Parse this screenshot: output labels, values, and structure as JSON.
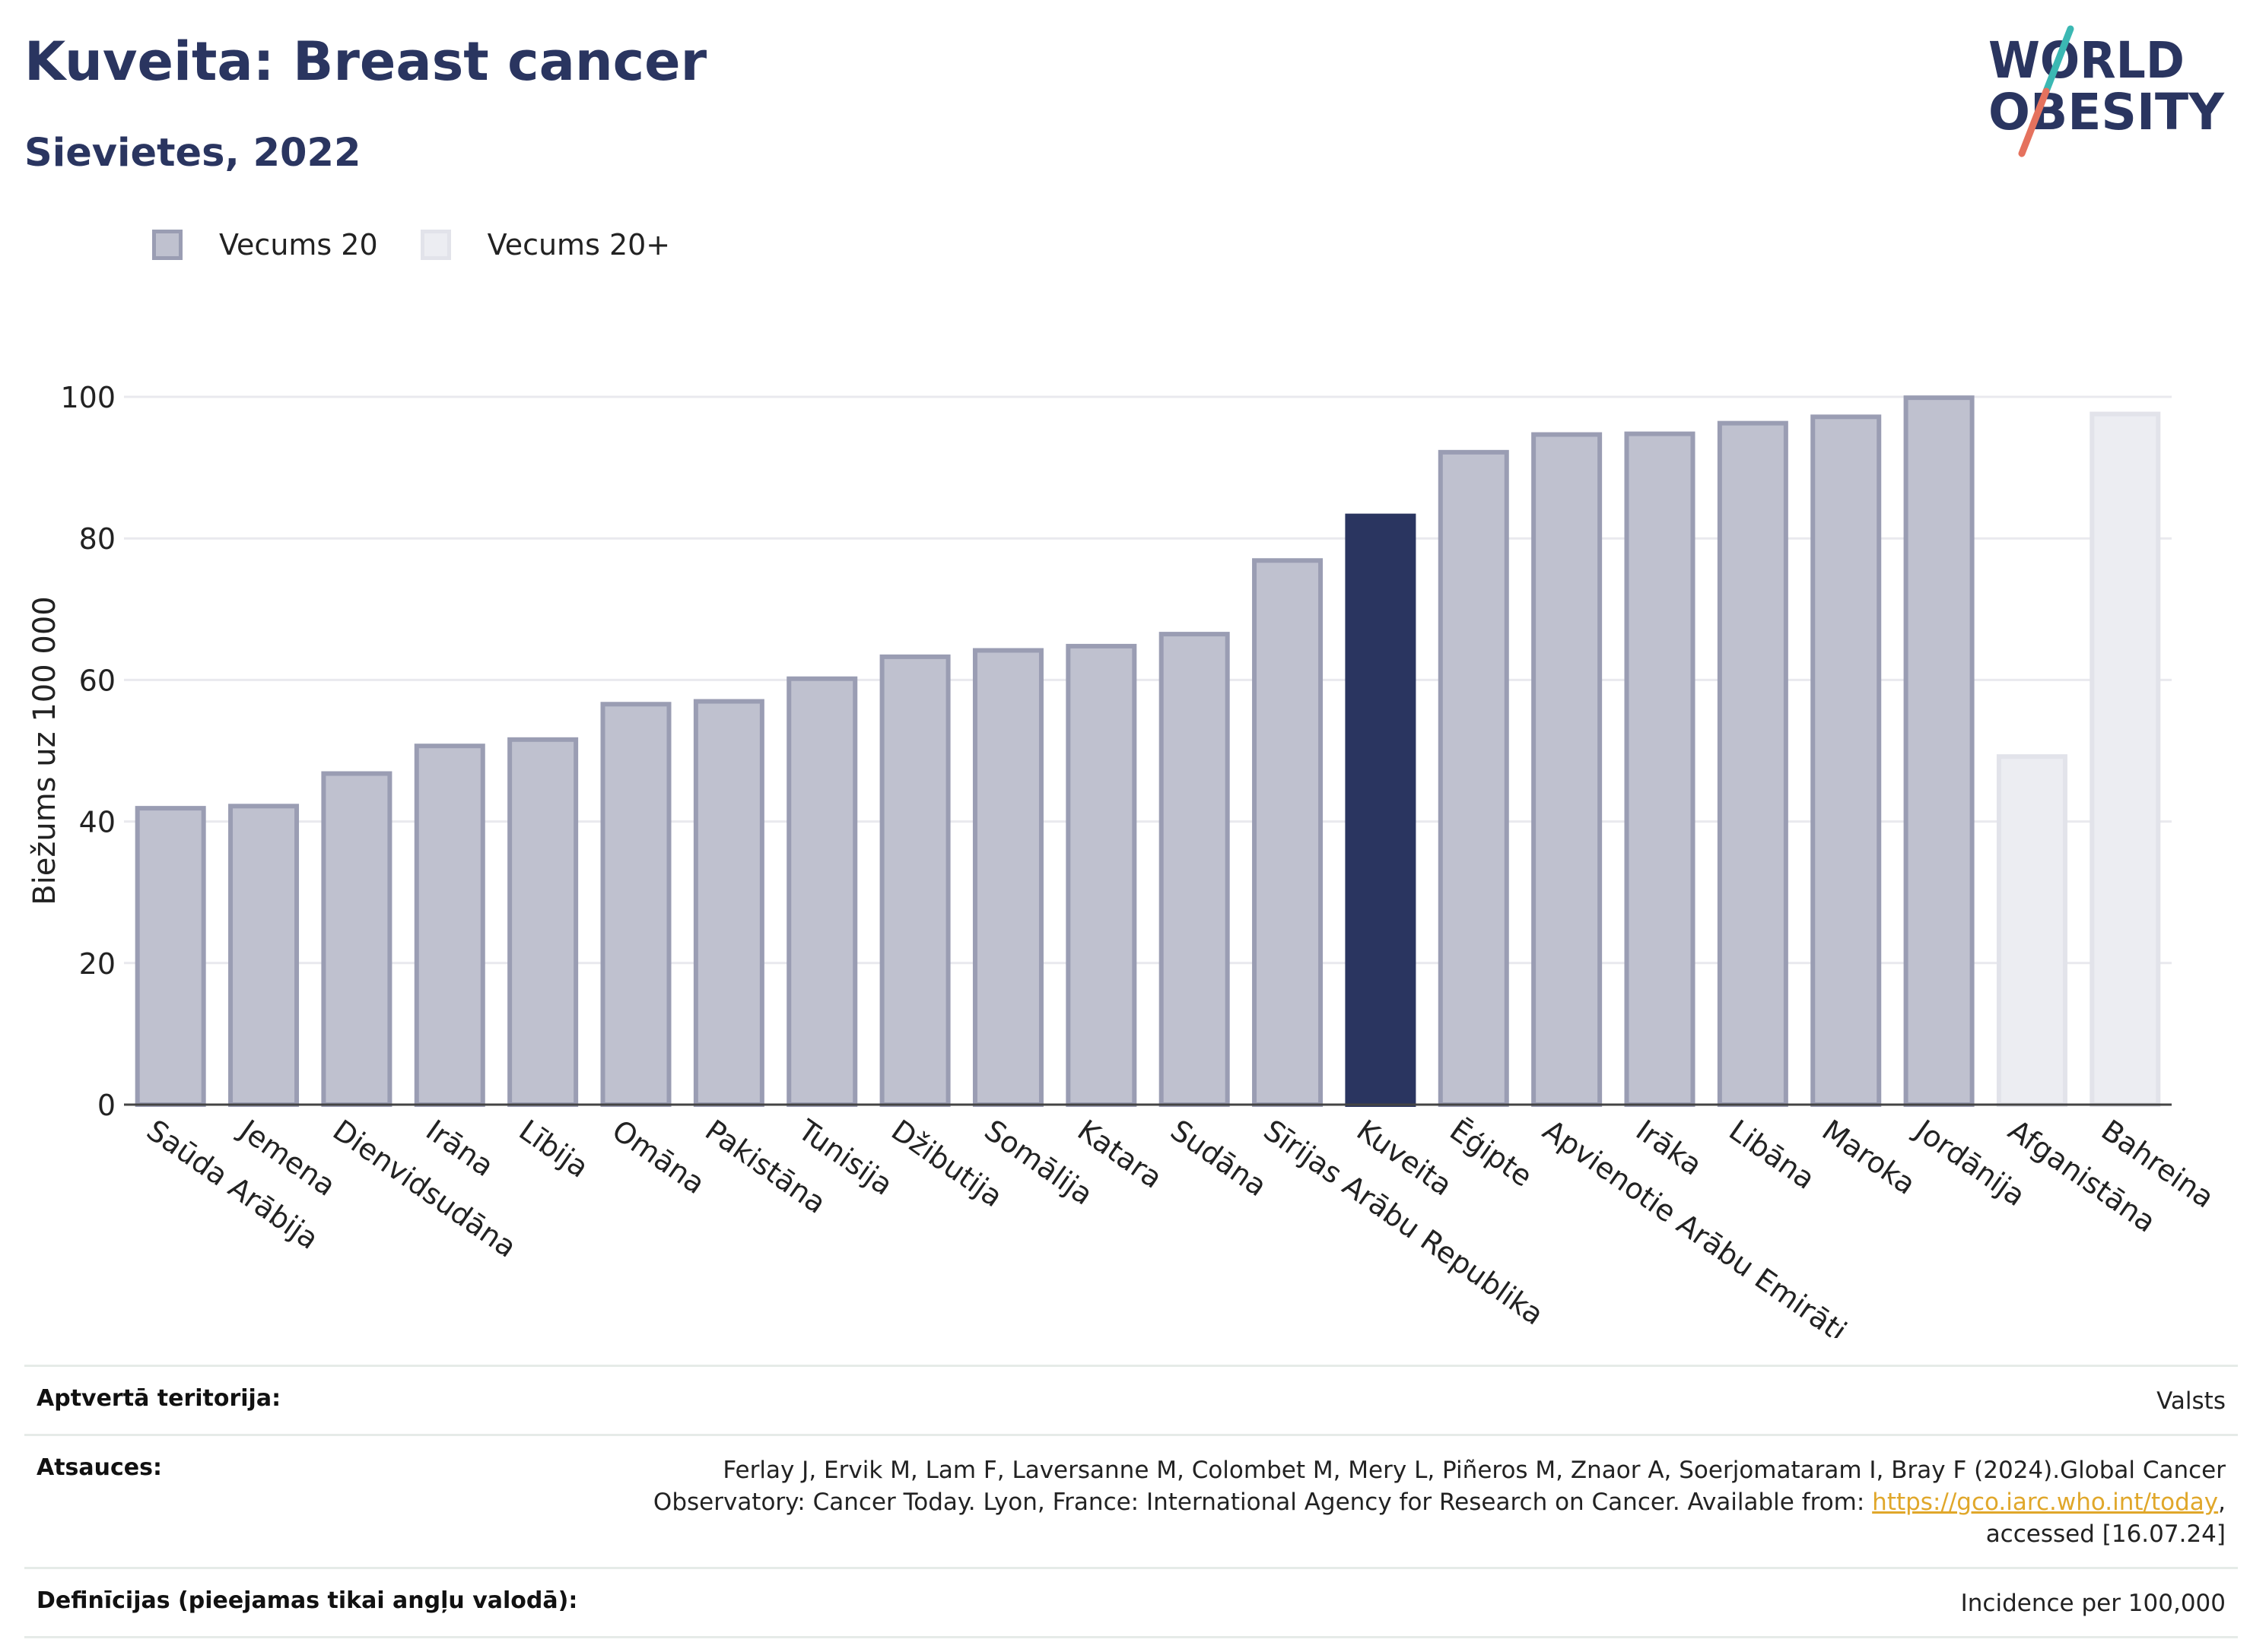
{
  "header": {
    "title": "Kuveita: Breast cancer",
    "subtitle": "Sievietes, 2022"
  },
  "logo": {
    "line1": "WORLD",
    "line2": "OBESITY",
    "colors": {
      "text": "#2a3560",
      "slash_top": "#3bb8b3",
      "slash_bottom": "#e5725e"
    }
  },
  "legend": {
    "items": [
      {
        "label": "Vecums 20",
        "color": "#bfc1cf"
      },
      {
        "label": "Vecums 20+",
        "color": "#ecedf2"
      }
    ]
  },
  "chart_data": {
    "type": "bar",
    "ylabel": "Biežums uz 100 000",
    "xlabel": "",
    "ylim": [
      0,
      100
    ],
    "yticks": [
      0,
      20,
      40,
      60,
      80,
      100
    ],
    "grid": true,
    "legend_position": "top-left",
    "colors": {
      "Vecums 20": "#bfc1cf",
      "Vecums 20 border": "#9a9db3",
      "highlight": "#2a3560",
      "Vecums 20+": "#ecedf2",
      "Vecums 20+ border": "#e2e3ea"
    },
    "categories": [
      "Saūda Arābija",
      "Jemena",
      "Dienvidsudāna",
      "Irāna",
      "Lībija",
      "Omāna",
      "Pakistāna",
      "Tunisija",
      "Džibutija",
      "Somālija",
      "Katara",
      "Sudāna",
      "Sīrijas Arābu Republika",
      "Kuveita",
      "Ēģipte",
      "Apvienotie Arābu Emirāti",
      "Irāka",
      "Libāna",
      "Maroka",
      "Jordānija",
      "Afganistāna",
      "Bahreina"
    ],
    "values": [
      42.2,
      42.5,
      47.1,
      51.0,
      51.9,
      56.9,
      57.3,
      60.5,
      63.6,
      64.5,
      65.1,
      66.8,
      77.2,
      83.5,
      92.5,
      95.0,
      95.1,
      96.6,
      97.5,
      100.2,
      49.5,
      97.9
    ],
    "series_membership": [
      "Vecums 20",
      "Vecums 20",
      "Vecums 20",
      "Vecums 20",
      "Vecums 20",
      "Vecums 20",
      "Vecums 20",
      "Vecums 20",
      "Vecums 20",
      "Vecums 20",
      "Vecums 20",
      "Vecums 20",
      "Vecums 20",
      "Vecums 20",
      "Vecums 20",
      "Vecums 20",
      "Vecums 20",
      "Vecums 20",
      "Vecums 20",
      "Vecums 20",
      "Vecums 20+",
      "Vecums 20+"
    ],
    "highlight": "Kuveita"
  },
  "footer": {
    "rows": [
      {
        "label": "Aptvertā teritorija:",
        "value": "Valsts"
      },
      {
        "label": "Atsauces:",
        "value_before": "Ferlay J, Ervik M, Lam F, Laversanne M, Colombet M, Mery L, Piñeros M, Znaor A, Soerjomataram I, Bray F (2024).Global Cancer Observatory: Cancer Today. Lyon, France: International Agency for Research on Cancer. Available from: ",
        "link": "https://gco.iarc.who.int/today",
        "value_after": ", accessed [16.07.24]"
      },
      {
        "label": "Definīcijas (pieejamas tikai angļu valodā):",
        "value": "Incidence per 100,000"
      }
    ]
  }
}
